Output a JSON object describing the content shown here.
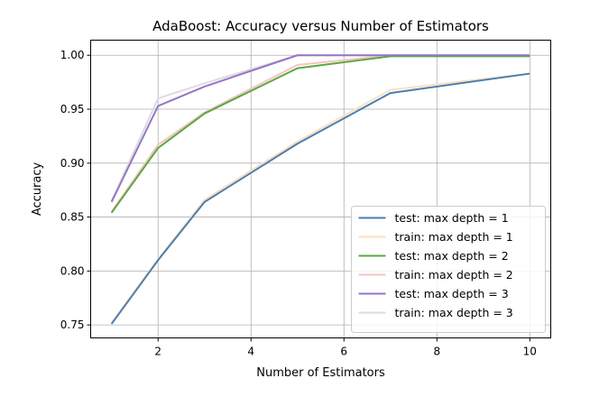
{
  "chart_data": {
    "type": "line",
    "title": "AdaBoost: Accuracy versus Number of Estimators",
    "xlabel": "Number of Estimators",
    "ylabel": "Accuracy",
    "xlim": [
      0.55,
      10.45
    ],
    "ylim": [
      0.738,
      1.014
    ],
    "xticks": [
      2,
      4,
      6,
      8,
      10
    ],
    "yticks": [
      0.75,
      0.8,
      0.85,
      0.9,
      0.95,
      1.0
    ],
    "xtick_labels": [
      "2",
      "4",
      "6",
      "8",
      "10"
    ],
    "ytick_labels": [
      "0.75",
      "0.80",
      "0.85",
      "0.90",
      "0.95",
      "1.00"
    ],
    "grid": true,
    "legend_position": "lower-right",
    "x": [
      1,
      2,
      3,
      5,
      7,
      10
    ],
    "series": [
      {
        "name": "test: max depth = 1",
        "color": "#4a7fb0",
        "values": [
          0.751,
          0.81,
          0.864,
          0.918,
          0.965,
          0.983
        ]
      },
      {
        "name": "train: max depth = 1",
        "color": "#ffdfc0",
        "values": [
          0.752,
          0.811,
          0.866,
          0.92,
          0.968,
          0.983
        ]
      },
      {
        "name": "test: max depth = 2",
        "color": "#5aa840",
        "values": [
          0.854,
          0.914,
          0.946,
          0.988,
          0.999,
          0.999
        ]
      },
      {
        "name": "train: max depth = 2",
        "color": "#f4c4c4",
        "values": [
          0.855,
          0.917,
          0.947,
          0.991,
          1.0,
          1.0
        ]
      },
      {
        "name": "test: max depth = 3",
        "color": "#9575c8",
        "values": [
          0.864,
          0.953,
          0.971,
          1.0,
          1.0,
          1.0
        ]
      },
      {
        "name": "train: max depth = 3",
        "color": "#dcdcdc",
        "values": [
          0.865,
          0.96,
          0.974,
          1.0,
          1.0,
          1.0
        ]
      }
    ]
  }
}
